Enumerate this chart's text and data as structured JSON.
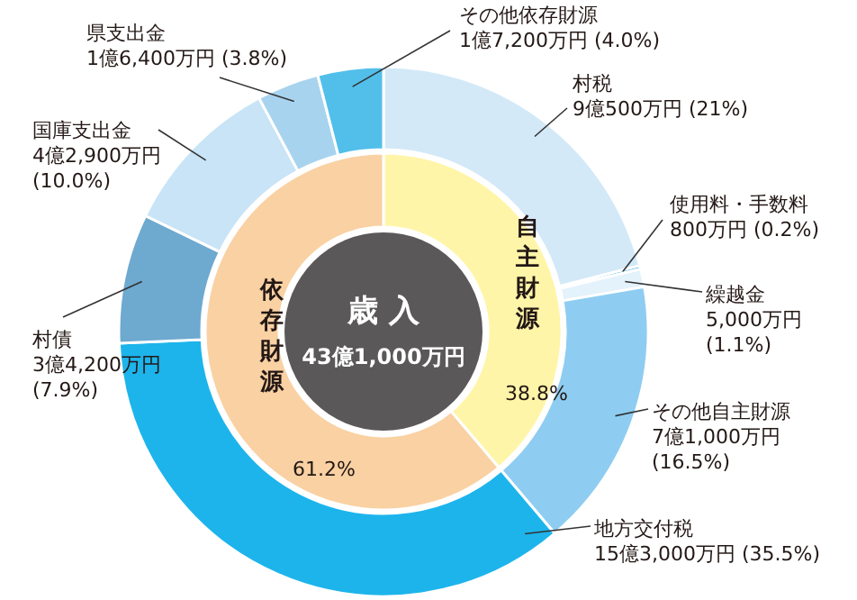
{
  "chart_data": [
    {
      "type": "donut",
      "categories": [
        "村税",
        "使用料・手数料",
        "繰越金",
        "その他自主財源",
        "地方交付税",
        "村債",
        "国庫支出金",
        "県支出金",
        "その他依存財源"
      ],
      "values": [
        21,
        0.2,
        1.1,
        16.5,
        35.5,
        7.9,
        10.0,
        3.8,
        4.0
      ],
      "colors": [
        "#d3e9f8",
        "#3aa9e0",
        "#e4f2fb",
        "#8ecdf1",
        "#1db4ec",
        "#6ea9cf",
        "#c8e4f6",
        "#a8d3ef",
        "#52bfea"
      ],
      "value_labels": [
        "9億500万円 (21%)",
        "800万円 (0.2%)",
        "5,000万円 (1.1%)",
        "7億1,000万円 (16.5%)",
        "15億3,000万円 (35.5%)",
        "3億4,200万円 (7.9%)",
        "4億2,900万円 (10.0%)",
        "1億6,400万円 (3.8%)",
        "1億7,200万円 (4.0%)"
      ]
    },
    {
      "type": "donut",
      "title": "歳 入",
      "subtitle": "43億1,000万円",
      "categories": [
        "自主財源",
        "依存財源"
      ],
      "values": [
        38.8,
        61.2
      ],
      "colors": [
        "#fff5a8",
        "#f9d1a3"
      ],
      "value_labels": [
        "38.8%",
        "61.2%"
      ]
    }
  ]
}
